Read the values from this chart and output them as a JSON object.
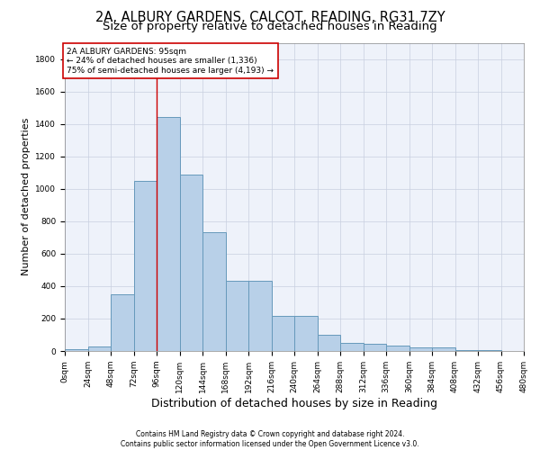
{
  "title_line1": "2A, ALBURY GARDENS, CALCOT, READING, RG31 7ZY",
  "title_line2": "Size of property relative to detached houses in Reading",
  "xlabel": "Distribution of detached houses by size in Reading",
  "ylabel": "Number of detached properties",
  "bar_color": "#b8d0e8",
  "bar_edge_color": "#6699bb",
  "grid_color": "#c8cfe0",
  "background_color": "#eef2fa",
  "annotation_text": "2A ALBURY GARDENS: 95sqm\n← 24% of detached houses are smaller (1,336)\n75% of semi-detached houses are larger (4,193) →",
  "annotation_box_color": "#cc0000",
  "vline_x": 96,
  "vline_color": "#cc0000",
  "footer_line1": "Contains HM Land Registry data © Crown copyright and database right 2024.",
  "footer_line2": "Contains public sector information licensed under the Open Government Licence v3.0.",
  "bin_edges": [
    0,
    24,
    48,
    72,
    96,
    120,
    144,
    168,
    192,
    216,
    240,
    264,
    288,
    312,
    336,
    360,
    384,
    408,
    432,
    456,
    480
  ],
  "bar_heights": [
    10,
    30,
    350,
    1050,
    1440,
    1090,
    730,
    430,
    430,
    215,
    215,
    100,
    50,
    45,
    35,
    20,
    20,
    5,
    5,
    2
  ],
  "ylim": [
    0,
    1900
  ],
  "yticks": [
    0,
    200,
    400,
    600,
    800,
    1000,
    1200,
    1400,
    1600,
    1800
  ],
  "title_fontsize": 10.5,
  "subtitle_fontsize": 9.5,
  "tick_label_fontsize": 6.5,
  "ylabel_fontsize": 8,
  "xlabel_fontsize": 9,
  "footer_fontsize": 5.5
}
